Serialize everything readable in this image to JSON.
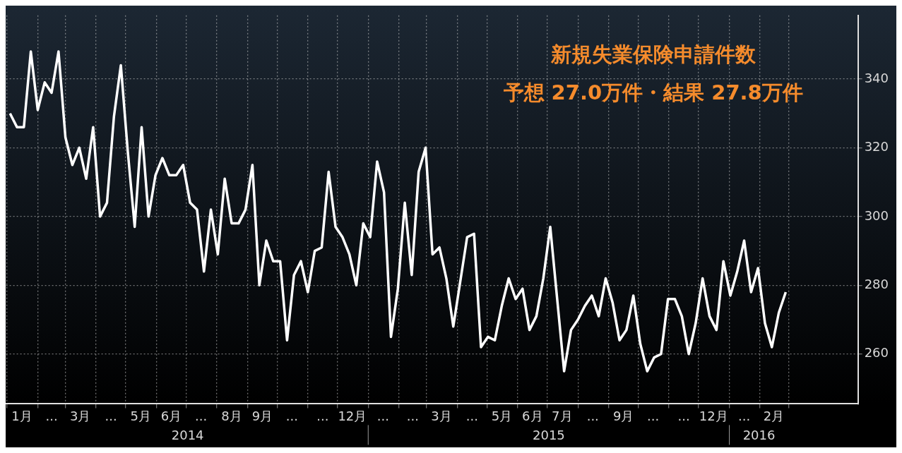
{
  "chart_data": {
    "type": "line",
    "title": "新規失業保険申請件数",
    "subtitle": "予想 27.0万件・結果 27.8万件",
    "x": [
      "2014-01-04",
      "2014-01-11",
      "2014-01-18",
      "2014-01-25",
      "2014-02-01",
      "2014-02-08",
      "2014-02-15",
      "2014-02-22",
      "2014-03-01",
      "2014-03-08",
      "2014-03-15",
      "2014-03-22",
      "2014-03-29",
      "2014-04-05",
      "2014-04-12",
      "2014-04-19",
      "2014-04-26",
      "2014-05-03",
      "2014-05-10",
      "2014-05-17",
      "2014-05-24",
      "2014-05-31",
      "2014-06-07",
      "2014-06-14",
      "2014-06-21",
      "2014-06-28",
      "2014-07-05",
      "2014-07-12",
      "2014-07-19",
      "2014-07-26",
      "2014-08-02",
      "2014-08-09",
      "2014-08-16",
      "2014-08-23",
      "2014-08-30",
      "2014-09-06",
      "2014-09-13",
      "2014-09-20",
      "2014-09-27",
      "2014-10-04",
      "2014-10-11",
      "2014-10-18",
      "2014-10-25",
      "2014-11-01",
      "2014-11-08",
      "2014-11-15",
      "2014-11-22",
      "2014-11-29",
      "2014-12-06",
      "2014-12-13",
      "2014-12-20",
      "2014-12-27",
      "2015-01-03",
      "2015-01-10",
      "2015-01-17",
      "2015-01-24",
      "2015-01-31",
      "2015-02-07",
      "2015-02-14",
      "2015-02-21",
      "2015-02-28",
      "2015-03-07",
      "2015-03-14",
      "2015-03-21",
      "2015-03-28",
      "2015-04-04",
      "2015-04-11",
      "2015-04-18",
      "2015-04-25",
      "2015-05-02",
      "2015-05-09",
      "2015-05-16",
      "2015-05-23",
      "2015-05-30",
      "2015-06-06",
      "2015-06-13",
      "2015-06-20",
      "2015-06-27",
      "2015-07-04",
      "2015-07-11",
      "2015-07-18",
      "2015-07-25",
      "2015-08-01",
      "2015-08-08",
      "2015-08-15",
      "2015-08-22",
      "2015-08-29",
      "2015-09-05",
      "2015-09-12",
      "2015-09-19",
      "2015-09-26",
      "2015-10-03",
      "2015-10-10",
      "2015-10-17",
      "2015-10-24",
      "2015-10-31",
      "2015-11-07",
      "2015-11-14",
      "2015-11-21",
      "2015-11-28",
      "2015-12-05",
      "2015-12-12",
      "2015-12-19",
      "2015-12-26",
      "2016-01-02",
      "2016-01-09",
      "2016-01-16",
      "2016-01-23",
      "2016-01-30",
      "2016-02-06",
      "2016-02-13",
      "2016-02-20",
      "2016-02-27"
    ],
    "series": [
      {
        "color": "#ffffff",
        "values": [
          330,
          326,
          326,
          348,
          331,
          339,
          336,
          348,
          323,
          315,
          320,
          311,
          326,
          300,
          304,
          329,
          344,
          319,
          297,
          326,
          300,
          312,
          317,
          312,
          312,
          315,
          304,
          302,
          284,
          302,
          289,
          311,
          298,
          298,
          302,
          315,
          280,
          293,
          287,
          287,
          264,
          283,
          287,
          278,
          290,
          291,
          313,
          297,
          294,
          289,
          280,
          298,
          294,
          316,
          307,
          265,
          279,
          304,
          283,
          313,
          320,
          289,
          291,
          282,
          268,
          281,
          294,
          295,
          262,
          265,
          264,
          274,
          282,
          276,
          279,
          267,
          271,
          282,
          297,
          276,
          255,
          267,
          270,
          274,
          277,
          271,
          282,
          275,
          264,
          267,
          277,
          263,
          255,
          259,
          260,
          276,
          276,
          271,
          260,
          269,
          282,
          271,
          267,
          287,
          277,
          284,
          293,
          278,
          285,
          269,
          262,
          272,
          278
        ]
      }
    ],
    "xlim": [
      "2013-12-31",
      "2016-05-10"
    ],
    "xticks": [
      {
        "value": "2014-01-01",
        "label": null
      },
      {
        "value": "2014-01-16",
        "label": "1月"
      },
      {
        "value": "2014-02-01",
        "label": null
      },
      {
        "value": "2014-02-15",
        "label": "..."
      },
      {
        "value": "2014-03-01",
        "label": null
      },
      {
        "value": "2014-03-16",
        "label": "3月"
      },
      {
        "value": "2014-04-01",
        "label": null
      },
      {
        "value": "2014-04-16",
        "label": "..."
      },
      {
        "value": "2014-05-01",
        "label": null
      },
      {
        "value": "2014-05-16",
        "label": "5月"
      },
      {
        "value": "2014-06-01",
        "label": null
      },
      {
        "value": "2014-06-16",
        "label": "6月"
      },
      {
        "value": "2014-07-01",
        "label": null
      },
      {
        "value": "2014-07-16",
        "label": "..."
      },
      {
        "value": "2014-08-01",
        "label": null
      },
      {
        "value": "2014-08-16",
        "label": "8月"
      },
      {
        "value": "2014-09-01",
        "label": null
      },
      {
        "value": "2014-09-16",
        "label": "9月"
      },
      {
        "value": "2014-10-01",
        "label": null
      },
      {
        "value": "2014-10-16",
        "label": "..."
      },
      {
        "value": "2014-11-01",
        "label": null
      },
      {
        "value": "2014-11-16",
        "label": "..."
      },
      {
        "value": "2014-12-01",
        "label": null
      },
      {
        "value": "2014-12-16",
        "label": "12月"
      },
      {
        "value": "2015-01-01",
        "label": null
      },
      {
        "value": "2015-01-16",
        "label": "..."
      },
      {
        "value": "2015-02-01",
        "label": null
      },
      {
        "value": "2015-02-15",
        "label": "..."
      },
      {
        "value": "2015-03-01",
        "label": null
      },
      {
        "value": "2015-03-16",
        "label": "3月"
      },
      {
        "value": "2015-04-01",
        "label": null
      },
      {
        "value": "2015-04-16",
        "label": "..."
      },
      {
        "value": "2015-05-01",
        "label": null
      },
      {
        "value": "2015-05-16",
        "label": "5月"
      },
      {
        "value": "2015-06-01",
        "label": null
      },
      {
        "value": "2015-06-16",
        "label": "6月"
      },
      {
        "value": "2015-07-01",
        "label": null
      },
      {
        "value": "2015-07-16",
        "label": "7月"
      },
      {
        "value": "2015-08-01",
        "label": null
      },
      {
        "value": "2015-08-16",
        "label": "..."
      },
      {
        "value": "2015-09-01",
        "label": null
      },
      {
        "value": "2015-09-16",
        "label": "9月"
      },
      {
        "value": "2015-10-01",
        "label": null
      },
      {
        "value": "2015-10-16",
        "label": "..."
      },
      {
        "value": "2015-11-01",
        "label": null
      },
      {
        "value": "2015-11-16",
        "label": "..."
      },
      {
        "value": "2015-12-01",
        "label": null
      },
      {
        "value": "2015-12-16",
        "label": "12月"
      },
      {
        "value": "2016-01-01",
        "label": null
      },
      {
        "value": "2016-01-16",
        "label": "..."
      },
      {
        "value": "2016-02-01",
        "label": null
      },
      {
        "value": "2016-02-15",
        "label": "2月"
      },
      {
        "value": "2016-03-01",
        "label": null
      }
    ],
    "ylim": [
      245.5,
      358.5
    ],
    "yticks": [
      260,
      280,
      300,
      320,
      340
    ],
    "annotations": [
      "2014",
      "2015",
      "2016"
    ],
    "grid": true,
    "legend": false,
    "marker": "none",
    "line_style": "solid"
  }
}
